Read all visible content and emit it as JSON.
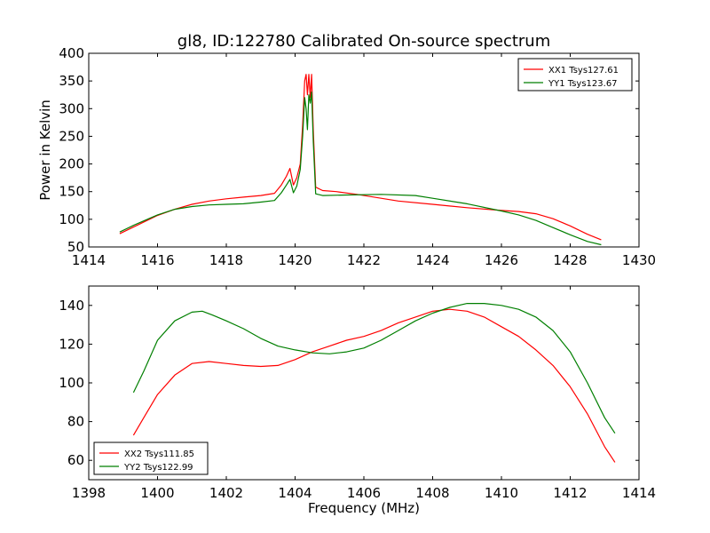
{
  "chart_data": [
    {
      "type": "line",
      "title": "gl8, ID:122780 Calibrated On-source spectrum",
      "xlabel": "",
      "ylabel": "Power in Kelvin",
      "xlim": [
        1414,
        1430
      ],
      "ylim": [
        50,
        400
      ],
      "xticks": [
        1414,
        1416,
        1418,
        1420,
        1422,
        1424,
        1426,
        1428,
        1430
      ],
      "yticks": [
        50,
        100,
        150,
        200,
        250,
        300,
        350,
        400
      ],
      "legend_position": "upper-right",
      "series": [
        {
          "name": "XX1 Tsys127.61",
          "color": "#ff0000",
          "points": [
            [
              1414.9,
              74
            ],
            [
              1415.3,
              86
            ],
            [
              1415.7,
              98
            ],
            [
              1416.0,
              107
            ],
            [
              1416.5,
              118
            ],
            [
              1417.0,
              127
            ],
            [
              1417.5,
              133
            ],
            [
              1418.0,
              137
            ],
            [
              1418.5,
              140
            ],
            [
              1419.0,
              143
            ],
            [
              1419.4,
              147
            ],
            [
              1419.6,
              162
            ],
            [
              1419.75,
              178
            ],
            [
              1419.85,
              192
            ],
            [
              1419.95,
              162
            ],
            [
              1420.05,
              175
            ],
            [
              1420.15,
              200
            ],
            [
              1420.22,
              270
            ],
            [
              1420.28,
              350
            ],
            [
              1420.32,
              362
            ],
            [
              1420.36,
              325
            ],
            [
              1420.4,
              362
            ],
            [
              1420.44,
              320
            ],
            [
              1420.48,
              362
            ],
            [
              1420.53,
              260
            ],
            [
              1420.6,
              158
            ],
            [
              1420.8,
              152
            ],
            [
              1421.2,
              150
            ],
            [
              1421.8,
              145
            ],
            [
              1422.5,
              138
            ],
            [
              1423.0,
              133
            ],
            [
              1424.0,
              127
            ],
            [
              1425.0,
              121
            ],
            [
              1426.0,
              116
            ],
            [
              1426.5,
              114
            ],
            [
              1427.0,
              110
            ],
            [
              1427.5,
              101
            ],
            [
              1428.0,
              88
            ],
            [
              1428.5,
              73
            ],
            [
              1428.9,
              63
            ]
          ]
        },
        {
          "name": "YY1 Tsys123.67",
          "color": "#007f00",
          "points": [
            [
              1414.9,
              77
            ],
            [
              1415.3,
              89
            ],
            [
              1415.7,
              100
            ],
            [
              1416.0,
              108
            ],
            [
              1416.5,
              118
            ],
            [
              1417.0,
              123
            ],
            [
              1417.5,
              126
            ],
            [
              1418.0,
              127
            ],
            [
              1418.5,
              128
            ],
            [
              1419.0,
              131
            ],
            [
              1419.4,
              134
            ],
            [
              1419.6,
              148
            ],
            [
              1419.75,
              162
            ],
            [
              1419.85,
              172
            ],
            [
              1419.95,
              148
            ],
            [
              1420.05,
              160
            ],
            [
              1420.15,
              190
            ],
            [
              1420.22,
              250
            ],
            [
              1420.28,
              320
            ],
            [
              1420.32,
              300
            ],
            [
              1420.36,
              262
            ],
            [
              1420.4,
              325
            ],
            [
              1420.44,
              310
            ],
            [
              1420.48,
              330
            ],
            [
              1420.53,
              240
            ],
            [
              1420.6,
              146
            ],
            [
              1420.8,
              143
            ],
            [
              1421.5,
              144
            ],
            [
              1422.5,
              145
            ],
            [
              1423.5,
              143
            ],
            [
              1424.0,
              138
            ],
            [
              1425.0,
              128
            ],
            [
              1426.0,
              115
            ],
            [
              1426.5,
              108
            ],
            [
              1427.0,
              98
            ],
            [
              1427.5,
              85
            ],
            [
              1428.0,
              72
            ],
            [
              1428.5,
              60
            ],
            [
              1428.9,
              54
            ]
          ]
        }
      ]
    },
    {
      "type": "line",
      "title": "",
      "xlabel": "Frequency (MHz)",
      "ylabel": "",
      "xlim": [
        1398,
        1414
      ],
      "ylim": [
        50,
        150
      ],
      "xticks": [
        1398,
        1400,
        1402,
        1404,
        1406,
        1408,
        1410,
        1412,
        1414
      ],
      "yticks": [
        60,
        80,
        100,
        120,
        140
      ],
      "legend_position": "lower-left",
      "series": [
        {
          "name": "XX2 Tsys111.85",
          "color": "#ff0000",
          "points": [
            [
              1399.3,
              73
            ],
            [
              1399.6,
              82
            ],
            [
              1400.0,
              94
            ],
            [
              1400.5,
              104
            ],
            [
              1401.0,
              110
            ],
            [
              1401.5,
              111
            ],
            [
              1402.0,
              110
            ],
            [
              1402.5,
              109
            ],
            [
              1403.0,
              108.5
            ],
            [
              1403.5,
              109
            ],
            [
              1404.0,
              112
            ],
            [
              1404.5,
              116
            ],
            [
              1405.0,
              119
            ],
            [
              1405.5,
              122
            ],
            [
              1406.0,
              124
            ],
            [
              1406.5,
              127
            ],
            [
              1407.0,
              131
            ],
            [
              1407.5,
              134
            ],
            [
              1408.0,
              137
            ],
            [
              1408.5,
              138
            ],
            [
              1409.0,
              137
            ],
            [
              1409.5,
              134
            ],
            [
              1410.0,
              129
            ],
            [
              1410.5,
              124
            ],
            [
              1411.0,
              117
            ],
            [
              1411.5,
              109
            ],
            [
              1412.0,
              98
            ],
            [
              1412.5,
              84
            ],
            [
              1413.0,
              67
            ],
            [
              1413.3,
              59
            ]
          ]
        },
        {
          "name": "YY2 Tsys122.99",
          "color": "#007f00",
          "points": [
            [
              1399.3,
              95
            ],
            [
              1399.6,
              106
            ],
            [
              1400.0,
              122
            ],
            [
              1400.5,
              132
            ],
            [
              1401.0,
              136.5
            ],
            [
              1401.3,
              137
            ],
            [
              1401.6,
              135
            ],
            [
              1402.0,
              132
            ],
            [
              1402.5,
              128
            ],
            [
              1403.0,
              123
            ],
            [
              1403.5,
              119
            ],
            [
              1404.0,
              117
            ],
            [
              1404.5,
              115.5
            ],
            [
              1405.0,
              115
            ],
            [
              1405.5,
              116
            ],
            [
              1406.0,
              118
            ],
            [
              1406.5,
              122
            ],
            [
              1407.0,
              127
            ],
            [
              1407.5,
              132
            ],
            [
              1408.0,
              136
            ],
            [
              1408.5,
              139
            ],
            [
              1409.0,
              141
            ],
            [
              1409.5,
              141
            ],
            [
              1410.0,
              140
            ],
            [
              1410.5,
              138
            ],
            [
              1411.0,
              134
            ],
            [
              1411.5,
              127
            ],
            [
              1412.0,
              116
            ],
            [
              1412.5,
              100
            ],
            [
              1413.0,
              82
            ],
            [
              1413.3,
              74
            ]
          ]
        }
      ]
    }
  ]
}
